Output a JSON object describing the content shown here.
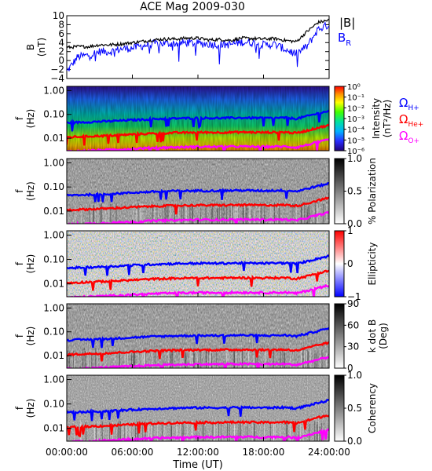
{
  "figure_title": "ACE Mag 2009-030",
  "x_axis": {
    "label": "Time (UT)",
    "ticks": [
      "00:00:00",
      "06:00:00",
      "12:00:00",
      "18:00:00",
      "24:00:00"
    ],
    "range_hours": [
      0,
      24
    ]
  },
  "labels": {
    "b_mag": "|B|",
    "b_r": "B",
    "b_r_sub": "R",
    "gyro_h": "Ω",
    "gyro_h_sub": "H+",
    "gyro_he": "Ω",
    "gyro_he_sub": "He+",
    "gyro_o": "Ω",
    "gyro_o_sub": "O+",
    "f_label": "f",
    "hz_label": "(Hz)",
    "b_label": "B",
    "nt_label": "(nT)"
  },
  "colorbars": {
    "intensity": {
      "title": "Intensity",
      "units": "(nT²/Hz)",
      "ticks": [
        "10⁰",
        "10⁻¹",
        "10⁻²",
        "10⁻³",
        "10⁻⁴",
        "10⁻⁵",
        "10⁻⁶"
      ]
    },
    "polarization": {
      "title": "% Polarization",
      "ticks": [
        "1.0",
        "0.5",
        "0.0"
      ]
    },
    "ellipticity": {
      "title": "Ellipticity",
      "ticks": [
        "1",
        "0",
        "−1"
      ]
    },
    "kdotb": {
      "title": "k dot B",
      "units": "(Deg)",
      "ticks": [
        "90",
        "60",
        "30",
        "0"
      ]
    },
    "coherency": {
      "title": "Coherency",
      "ticks": [
        "1.0",
        "0.5",
        "0.0"
      ]
    }
  },
  "colors": {
    "b_mag": "#000000",
    "b_r": "#0000ff",
    "gyro_h": "#0000ff",
    "gyro_he": "#ff0000",
    "gyro_o": "#ff00ff"
  },
  "chart_data": [
    {
      "type": "line",
      "panel": "magnetic field",
      "ylabel": "B (nT)",
      "ylim": [
        -4,
        10
      ],
      "yticks": [
        "10",
        "8",
        "6",
        "4",
        "2",
        "0",
        "−2",
        "−4"
      ],
      "x_hours": [
        0,
        1,
        2,
        3,
        4,
        5,
        6,
        7,
        8,
        9,
        10,
        11,
        12,
        13,
        14,
        15,
        16,
        17,
        18,
        19,
        20,
        21,
        22,
        23,
        24
      ],
      "series": [
        {
          "name": "|B|",
          "values": [
            2.9,
            3.1,
            3.1,
            3.5,
            3.5,
            3.7,
            4.0,
            4.3,
            4.6,
            4.8,
            4.8,
            5.0,
            5.0,
            4.6,
            4.7,
            4.5,
            5.0,
            4.9,
            4.8,
            4.9,
            4.5,
            4.2,
            6.5,
            8.5,
            9.0
          ]
        },
        {
          "name": "B_R",
          "values": [
            -2.5,
            0.8,
            1.2,
            2.0,
            2.0,
            2.6,
            2.8,
            3.3,
            3.8,
            3.8,
            3.8,
            4.0,
            3.8,
            3.7,
            3.5,
            3.6,
            4.1,
            4.0,
            3.5,
            3.6,
            2.5,
            1.5,
            3.2,
            7.0,
            8.0
          ]
        }
      ]
    },
    {
      "type": "line",
      "panel": "ion gyrofrequencies (overlaid on spectrogram panels)",
      "ylabel": "f (Hz)",
      "yscale": "log",
      "ylim": [
        0.003,
        1.5
      ],
      "yticks": [
        "1.00",
        "0.10",
        "0.01"
      ],
      "x_hours": [
        0,
        2,
        4,
        6,
        8,
        10,
        12,
        14,
        16,
        18,
        20,
        21,
        22,
        23,
        24
      ],
      "series": [
        {
          "name": "Ω_H+",
          "values": [
            0.045,
            0.048,
            0.052,
            0.058,
            0.064,
            0.068,
            0.07,
            0.07,
            0.072,
            0.07,
            0.072,
            0.066,
            0.085,
            0.11,
            0.14
          ]
        },
        {
          "name": "Ω_He+",
          "values": [
            0.011,
            0.012,
            0.013,
            0.0145,
            0.016,
            0.017,
            0.0175,
            0.0175,
            0.018,
            0.0175,
            0.018,
            0.0165,
            0.021,
            0.028,
            0.035
          ]
        },
        {
          "name": "Ω_O+",
          "values": [
            0.0028,
            0.003,
            0.0033,
            0.0036,
            0.004,
            0.0042,
            0.0044,
            0.0044,
            0.0045,
            0.0044,
            0.0045,
            0.0041,
            0.0053,
            0.0069,
            0.0088
          ]
        }
      ]
    }
  ]
}
